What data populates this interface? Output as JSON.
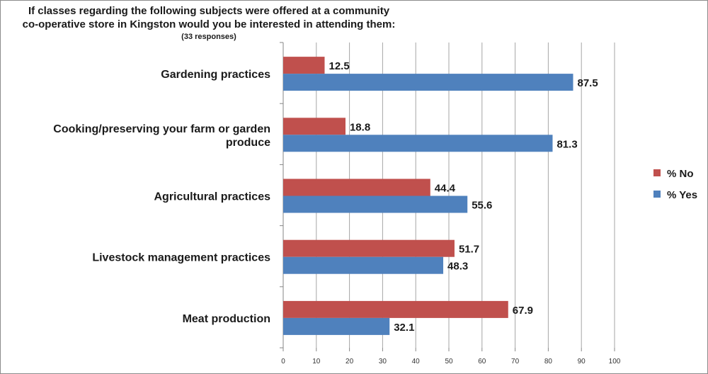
{
  "chart_data": {
    "type": "bar",
    "orientation": "horizontal",
    "title": "If classes regarding the following subjects were offered at a community co-operative store in Kingston would you be interested in attending them:",
    "title_line1": "If classes regarding the following subjects were offered at a community",
    "title_line2": "co-operative store in Kingston would you be interested in attending them:",
    "subtitle": "(33 responses)",
    "categories": [
      [
        "Gardening practices"
      ],
      [
        "Cooking/preserving your farm or garden",
        "produce"
      ],
      [
        "Agricultural practices"
      ],
      [
        "Livestock management practices"
      ],
      [
        "Meat production"
      ]
    ],
    "series": [
      {
        "name": "% No",
        "color": "#c0504d",
        "values": [
          12.5,
          18.8,
          44.4,
          51.7,
          67.9
        ]
      },
      {
        "name": "% Yes",
        "color": "#4f81bd",
        "values": [
          87.5,
          81.3,
          55.6,
          48.3,
          32.1
        ]
      }
    ],
    "xlim": [
      0,
      100
    ],
    "xticks": [
      0,
      10,
      20,
      30,
      40,
      50,
      60,
      70,
      80,
      90,
      100
    ],
    "grid": true,
    "legend_position": "right"
  }
}
